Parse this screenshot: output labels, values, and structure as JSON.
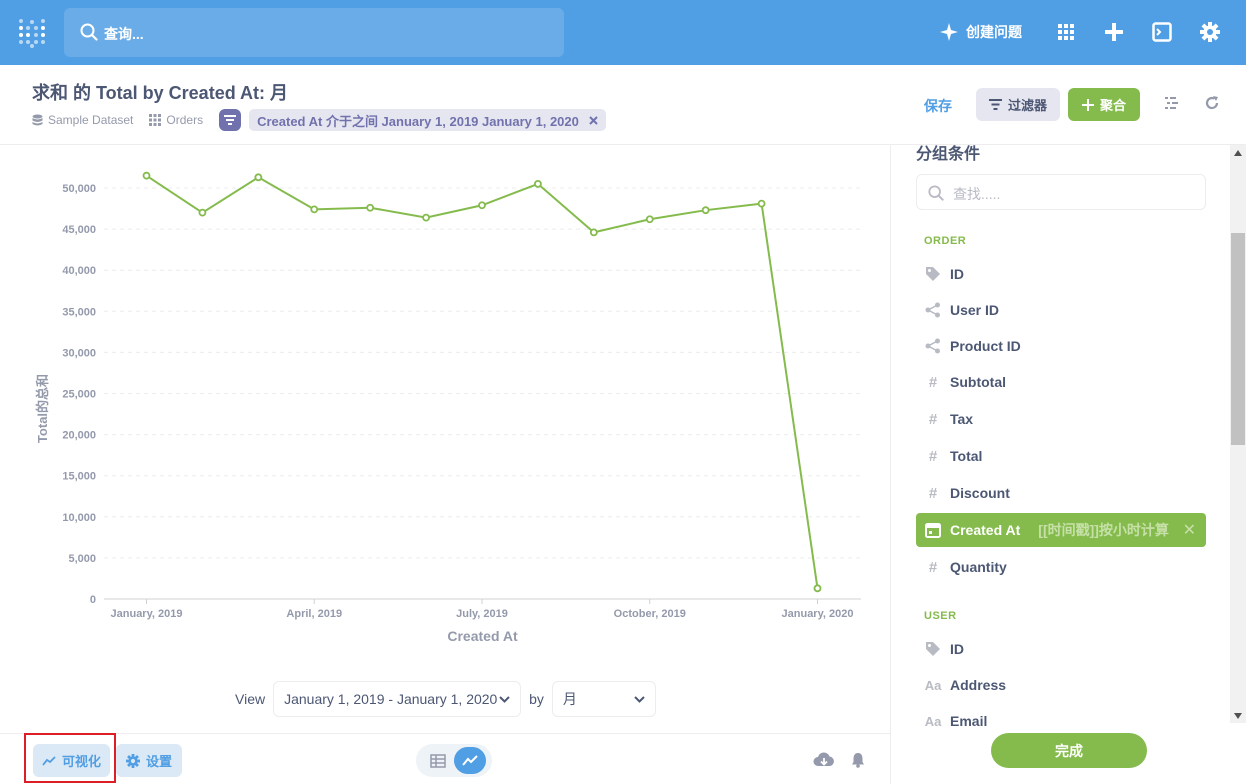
{
  "nav": {
    "search_placeholder": "查询...",
    "new_question_label": "创建问题"
  },
  "header": {
    "title": "求和 的 Total by Created At: 月",
    "database": "Sample Dataset",
    "table": "Orders",
    "filter_pill": "Created At 介于之间 January 1, 2019 January 1, 2020",
    "save_label": "保存",
    "filter_label": "过滤器",
    "aggregate_label": "聚合"
  },
  "chart_data": {
    "type": "line",
    "xlabel": "Created At",
    "ylabel": "Total的总和",
    "ylim": [
      0,
      50000
    ],
    "y_ticks": [
      "0",
      "5,000",
      "10,000",
      "15,000",
      "20,000",
      "25,000",
      "30,000",
      "35,000",
      "40,000",
      "45,000",
      "50,000"
    ],
    "x_ticks": [
      "January, 2019",
      "April, 2019",
      "July, 2019",
      "October, 2019",
      "January, 2020"
    ],
    "x_tick_index": [
      0,
      3,
      6,
      9,
      12
    ],
    "x": [
      "2019-01",
      "2019-02",
      "2019-03",
      "2019-04",
      "2019-05",
      "2019-06",
      "2019-07",
      "2019-08",
      "2019-09",
      "2019-10",
      "2019-11",
      "2019-12",
      "2020-01"
    ],
    "values": [
      51500,
      47000,
      51300,
      47400,
      47600,
      46400,
      47900,
      50500,
      44600,
      46200,
      47300,
      48100,
      1300
    ],
    "color": "#84bb4c"
  },
  "viewbar": {
    "view_label": "View",
    "range_value": "January 1, 2019 - January 1, 2020",
    "by_label": "by",
    "unit_value": "月"
  },
  "bottom": {
    "visualize_label": "可视化",
    "settings_label": "设置"
  },
  "sidebar": {
    "title": "分组条件",
    "search_placeholder": "查找.....",
    "order_section": "ORDER",
    "order_items": [
      {
        "icon": "tag",
        "label": "ID"
      },
      {
        "icon": "fk",
        "label": "User ID"
      },
      {
        "icon": "fk",
        "label": "Product ID"
      },
      {
        "icon": "#",
        "label": "Subtotal"
      },
      {
        "icon": "#",
        "label": "Tax"
      },
      {
        "icon": "#",
        "label": "Total"
      },
      {
        "icon": "#",
        "label": "Discount"
      },
      {
        "icon": "calendar",
        "label": "Created At",
        "binning": "[[时间戳]]按小时计算"
      },
      {
        "icon": "#",
        "label": "Quantity"
      }
    ],
    "user_section": "USER",
    "user_items": [
      {
        "icon": "tag",
        "label": "ID"
      },
      {
        "icon": "Aa",
        "label": "Address"
      },
      {
        "icon": "Aa",
        "label": "Email"
      }
    ],
    "done_label": "完成"
  }
}
